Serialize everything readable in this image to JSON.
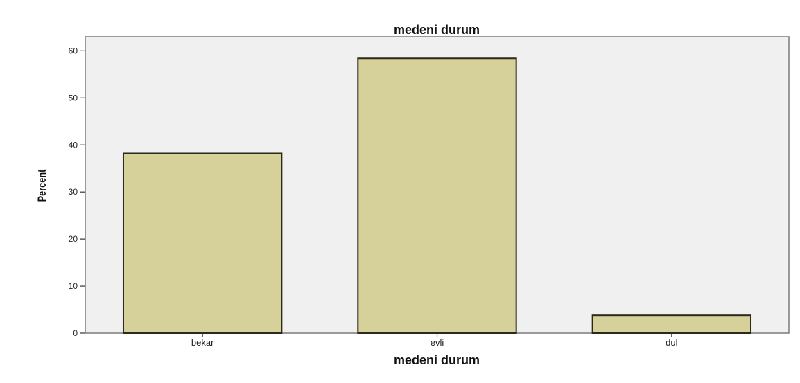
{
  "chart_data": {
    "type": "bar",
    "title": "medeni durum",
    "xlabel": "medeni durum",
    "ylabel": "Percent",
    "categories": [
      "bekar",
      "evli",
      "dul"
    ],
    "values": [
      38.2,
      58.4,
      3.8
    ],
    "ylim": [
      0,
      63
    ],
    "yticks": [
      0,
      10,
      20,
      30,
      40,
      50,
      60
    ],
    "grid": false,
    "colors": {
      "plot_background": "#f0f0f0",
      "bar_fill": "#d6d09a",
      "bar_stroke": "#2a2a1a",
      "axis": "#333333",
      "frame": "#7a7a7a"
    }
  }
}
